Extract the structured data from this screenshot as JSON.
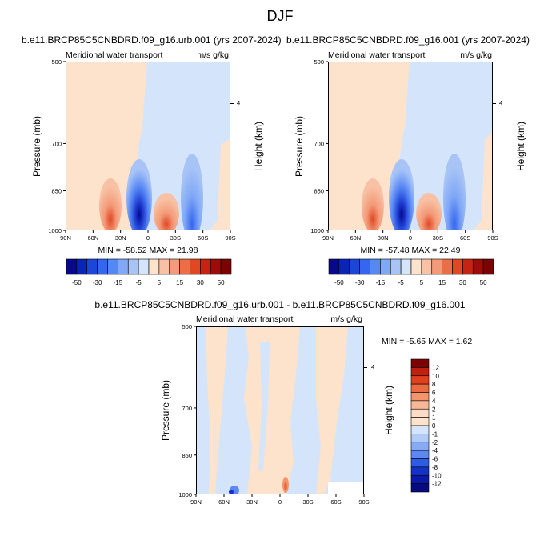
{
  "title": "DJF",
  "panels": [
    {
      "title": "b.e11.BRCP85C5CNBDRD.f09_g16.urb.001 (yrs 2007-2024)",
      "left_label": "Meridional water transport",
      "right_label": "m/s g/kg",
      "y_label": "Pressure (mb)",
      "y2_label": "Height (km)",
      "y_ticks": [
        "500",
        "700",
        "850",
        "1000"
      ],
      "y2_ticks": [
        "4"
      ],
      "x_ticks": [
        "90N",
        "60N",
        "30N",
        "0",
        "30S",
        "60S",
        "90S"
      ],
      "minmax": "MIN = -58.52   MAX =  21.98"
    },
    {
      "title": "b.e11.BRCP85C5CNBDRD.f09_g16.001 (yrs 2007-2024)",
      "left_label": "Meridional water transport",
      "right_label": "m/s g/kg",
      "y_label": "Pressure (mb)",
      "y2_label": "Height (km)",
      "y_ticks": [
        "500",
        "700",
        "850",
        "1000"
      ],
      "y2_ticks": [
        "4"
      ],
      "x_ticks": [
        "90N",
        "60N",
        "30N",
        "0",
        "30S",
        "60S",
        "90S"
      ],
      "minmax": "MIN = -57.48   MAX =  22.49"
    },
    {
      "title": "b.e11.BRCP85C5CNBDRD.f09_g16.urb.001 - b.e11.BRCP85C5CNBDRD.f09_g16.001",
      "left_label": "Meridional water transport",
      "right_label": "m/s g/kg",
      "y_label": "Pressure (mb)",
      "y2_label": "Height (km)",
      "y_ticks": [
        "500",
        "700",
        "850",
        "1000"
      ],
      "y2_ticks": [
        "4"
      ],
      "x_ticks": [
        "90N",
        "60N",
        "30N",
        "0",
        "30S",
        "60S",
        "90S"
      ],
      "minmax": "MIN =  -5.65   MAX =   1.62"
    }
  ],
  "colorbar_top": {
    "labels": [
      "-50",
      "-30",
      "-15",
      "-5",
      "5",
      "15",
      "30",
      "50"
    ],
    "colors": [
      "#08088c",
      "#0b24b8",
      "#1c46d8",
      "#3466ee",
      "#5688f4",
      "#80a8f6",
      "#a8c4f6",
      "#d4e4fa",
      "#fde3cc",
      "#f8c0a4",
      "#f39a78",
      "#ec6e48",
      "#e04824",
      "#c62412",
      "#9c0c08",
      "#7a0404"
    ]
  },
  "colorbar_bottom": {
    "labels": [
      "12",
      "10",
      "8",
      "6",
      "4",
      "2",
      "1",
      "0",
      "-1",
      "-2",
      "-4",
      "-6",
      "-8",
      "-10",
      "-12"
    ],
    "colors": [
      "#7a0404",
      "#c0200e",
      "#e0401e",
      "#ec6a40",
      "#f3946c",
      "#f8b898",
      "#fcdcc4",
      "#fde3cc",
      "#d4e4fa",
      "#b0ccf6",
      "#88aaf4",
      "#5c88f0",
      "#2e5ce6",
      "#1432c8",
      "#0a1aa8",
      "#060a80"
    ]
  },
  "chart_data": [
    {
      "type": "heatmap",
      "title": "b.e11.BRCP85C5CNBDRD.f09_g16.urb.001 (yrs 2007-2024)",
      "xlabel": "",
      "ylabel": "Pressure (mb)",
      "x_range": [
        "90N",
        "90S"
      ],
      "y_range": [
        500,
        1000
      ],
      "units": "m/s g/kg",
      "min": -58.52,
      "max": 21.98,
      "contour_levels": [
        -50,
        -40,
        -30,
        -20,
        -15,
        -10,
        -5,
        0,
        5,
        10,
        15,
        20,
        30,
        40,
        50
      ]
    },
    {
      "type": "heatmap",
      "title": "b.e11.BRCP85C5CNBDRD.f09_g16.001 (yrs 2007-2024)",
      "xlabel": "",
      "ylabel": "Pressure (mb)",
      "x_range": [
        "90N",
        "90S"
      ],
      "y_range": [
        500,
        1000
      ],
      "units": "m/s g/kg",
      "min": -57.48,
      "max": 22.49,
      "contour_levels": [
        -50,
        -40,
        -30,
        -20,
        -15,
        -10,
        -5,
        0,
        5,
        10,
        15,
        20,
        30,
        40,
        50
      ]
    },
    {
      "type": "heatmap",
      "title": "b.e11.BRCP85C5CNBDRD.f09_g16.urb.001 - b.e11.BRCP85C5CNBDRD.f09_g16.001",
      "xlabel": "",
      "ylabel": "Pressure (mb)",
      "x_range": [
        "90N",
        "90S"
      ],
      "y_range": [
        500,
        1000
      ],
      "units": "m/s g/kg",
      "min": -5.65,
      "max": 1.62,
      "contour_levels": [
        -12,
        -10,
        -8,
        -6,
        -4,
        -2,
        -1,
        0,
        1,
        2,
        4,
        6,
        8,
        10,
        12
      ]
    }
  ]
}
